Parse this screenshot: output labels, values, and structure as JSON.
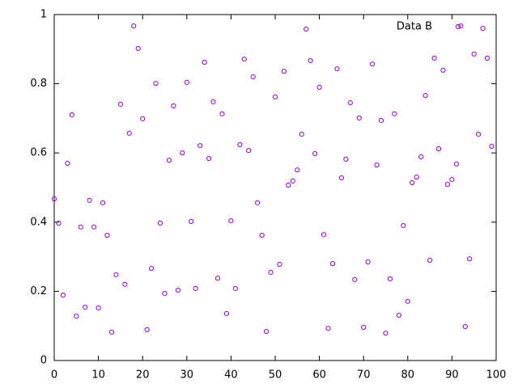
{
  "chart_data": {
    "type": "scatter",
    "x": [
      0,
      1,
      2,
      3,
      4,
      5,
      6,
      7,
      8,
      9,
      10,
      11,
      12,
      13,
      14,
      15,
      16,
      17,
      18,
      19,
      20,
      21,
      22,
      23,
      24,
      25,
      26,
      27,
      28,
      29,
      30,
      31,
      32,
      33,
      34,
      35,
      36,
      37,
      38,
      39,
      40,
      41,
      42,
      43,
      44,
      45,
      46,
      47,
      48,
      49,
      50,
      51,
      52,
      53,
      54,
      55,
      56,
      57,
      58,
      59,
      60,
      61,
      62,
      63,
      64,
      65,
      66,
      67,
      68,
      69,
      70,
      71,
      72,
      73,
      74,
      75,
      76,
      77,
      78,
      79,
      80,
      81,
      82,
      83,
      84,
      85,
      86,
      87,
      88,
      89,
      90,
      91,
      92,
      93,
      94,
      95,
      96,
      97,
      98,
      99
    ],
    "series": [
      {
        "name": "Data B",
        "color": "#9400d3",
        "values": [
          0.467,
          0.397,
          0.189,
          0.57,
          0.71,
          0.128,
          0.386,
          0.154,
          0.463,
          0.386,
          0.152,
          0.456,
          0.362,
          0.082,
          0.248,
          0.741,
          0.22,
          0.657,
          0.967,
          0.902,
          0.699,
          0.089,
          0.266,
          0.801,
          0.397,
          0.194,
          0.579,
          0.736,
          0.203,
          0.6,
          0.804,
          0.402,
          0.208,
          0.621,
          0.862,
          0.584,
          0.748,
          0.238,
          0.713,
          0.136,
          0.404,
          0.208,
          0.624,
          0.871,
          0.607,
          0.82,
          0.456,
          0.362,
          0.084,
          0.255,
          0.762,
          0.278,
          0.836,
          0.507,
          0.519,
          0.551,
          0.654,
          0.958,
          0.867,
          0.598,
          0.79,
          0.364,
          0.093,
          0.28,
          0.843,
          0.528,
          0.582,
          0.745,
          0.234,
          0.701,
          0.096,
          0.285,
          0.857,
          0.565,
          0.694,
          0.079,
          0.236,
          0.713,
          0.131,
          0.39,
          0.171,
          0.514,
          0.53,
          0.589,
          0.766,
          0.29,
          0.874,
          0.612,
          0.839,
          0.509,
          0.523,
          0.568,
          0.967,
          0.098,
          0.294,
          0.886,
          0.654,
          0.96,
          0.874,
          0.619
        ]
      }
    ],
    "xlim": [
      0,
      100
    ],
    "xticks": [
      0,
      10,
      20,
      30,
      40,
      50,
      60,
      70,
      80,
      90,
      100
    ],
    "ylim": [
      0,
      1
    ],
    "yticks": [
      0,
      0.2,
      0.4,
      0.6,
      0.8,
      1
    ],
    "legend": "top-right"
  }
}
